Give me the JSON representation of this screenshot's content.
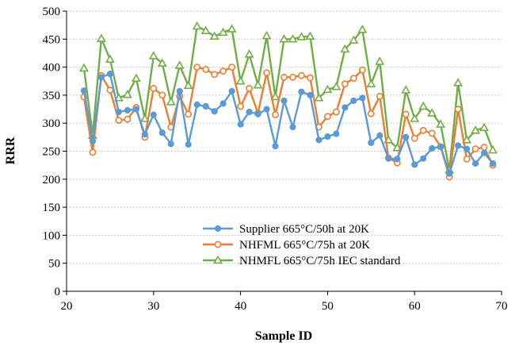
{
  "chart_data": {
    "type": "line",
    "title": "",
    "xlabel": "Sample ID",
    "ylabel": "RRR",
    "xlim": [
      20,
      70
    ],
    "ylim": [
      0,
      500
    ],
    "xticks": [
      20,
      30,
      40,
      50,
      60,
      70
    ],
    "yticks": [
      0,
      50,
      100,
      150,
      200,
      250,
      300,
      350,
      400,
      450,
      500
    ],
    "grid": "horizontal dotted",
    "legend_position": "bottom-right",
    "x": [
      22,
      23,
      24,
      25,
      26,
      27,
      28,
      29,
      30,
      31,
      32,
      33,
      34,
      35,
      36,
      37,
      38,
      39,
      40,
      41,
      42,
      43,
      44,
      45,
      46,
      47,
      48,
      49,
      50,
      51,
      52,
      53,
      54,
      55,
      56,
      57,
      58,
      59,
      60,
      61,
      62,
      63,
      64,
      65,
      66,
      67,
      68,
      69
    ],
    "series": [
      {
        "name": "Supplier 665°C/50h at 20K",
        "color": "#5B9BD5",
        "marker": "circle-filled",
        "values": [
          358,
          268,
          382,
          388,
          320,
          323,
          325,
          280,
          315,
          283,
          263,
          357,
          262,
          333,
          330,
          321,
          335,
          357,
          298,
          320,
          316,
          325,
          259,
          340,
          293,
          356,
          350,
          270,
          276,
          281,
          328,
          340,
          345,
          265,
          278,
          237,
          236,
          275,
          226,
          237,
          255,
          258,
          210,
          260,
          254,
          228,
          247,
          228
        ]
      },
      {
        "name": "NHFML 665°C/75h at 20K",
        "color": "#ED7D31",
        "marker": "circle-open",
        "values": [
          347,
          248,
          385,
          359,
          305,
          307,
          328,
          275,
          362,
          350,
          293,
          348,
          316,
          400,
          396,
          387,
          393,
          400,
          330,
          362,
          318,
          390,
          315,
          382,
          382,
          385,
          381,
          293,
          312,
          320,
          370,
          380,
          395,
          317,
          348,
          238,
          229,
          316,
          273,
          287,
          282,
          258,
          204,
          325,
          236,
          254,
          257,
          225
        ]
      },
      {
        "name": "NHMFL 665°C/75h IEC standard",
        "color": "#70AD47",
        "marker": "triangle-open",
        "values": [
          398,
          278,
          451,
          414,
          345,
          351,
          380,
          308,
          420,
          407,
          338,
          403,
          367,
          473,
          465,
          455,
          462,
          468,
          375,
          423,
          368,
          456,
          347,
          450,
          450,
          454,
          455,
          345,
          360,
          365,
          432,
          448,
          467,
          370,
          410,
          270,
          256,
          359,
          308,
          330,
          318,
          298,
          216,
          372,
          270,
          287,
          292,
          252
        ]
      }
    ]
  }
}
